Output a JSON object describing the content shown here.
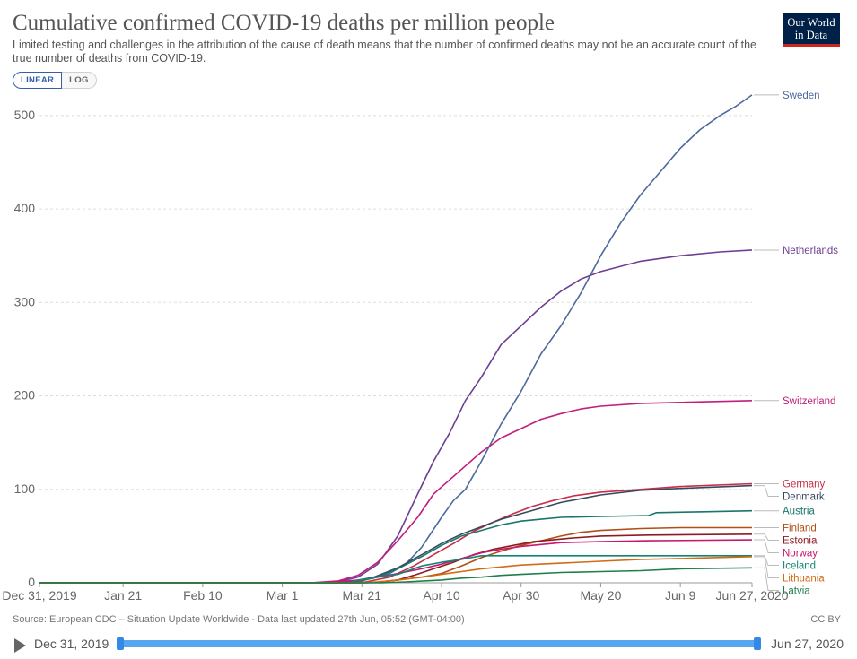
{
  "header": {
    "title": "Cumulative confirmed COVID-19 deaths per million people",
    "subtitle": "Limited testing and challenges in the attribution of the cause of death means that the number of confirmed deaths may not be an accurate count of the true number of deaths from COVID-19.",
    "logo": "Our World in Data",
    "scale_linear": "LINEAR",
    "scale_log": "LOG"
  },
  "footer": {
    "source": "Source: European CDC – Situation Update Worldwide - Data last updated 27th Jun, 05:52 (GMT-04:00)",
    "license": "CC BY"
  },
  "timeline": {
    "start": "Dec 31, 2019",
    "end": "Jun 27, 2020"
  },
  "chart_data": {
    "type": "line",
    "title": "Cumulative confirmed COVID-19 deaths per million people",
    "xlabel": "",
    "ylabel": "",
    "ylim": [
      0,
      520
    ],
    "yticks": [
      0,
      100,
      200,
      300,
      400,
      500
    ],
    "x_start": "2019-12-31",
    "x_end": "2020-06-27",
    "xticks": [
      {
        "date": "2019-12-31",
        "label": "Dec 31, 2019"
      },
      {
        "date": "2020-01-21",
        "label": "Jan 21"
      },
      {
        "date": "2020-02-10",
        "label": "Feb 10"
      },
      {
        "date": "2020-03-01",
        "label": "Mar 1"
      },
      {
        "date": "2020-03-21",
        "label": "Mar 21"
      },
      {
        "date": "2020-04-10",
        "label": "Apr 10"
      },
      {
        "date": "2020-04-30",
        "label": "Apr 30"
      },
      {
        "date": "2020-05-20",
        "label": "May 20"
      },
      {
        "date": "2020-06-09",
        "label": "Jun 9"
      },
      {
        "date": "2020-06-27",
        "label": "Jun 27, 2020"
      }
    ],
    "grid": true,
    "legend": "right",
    "series": [
      {
        "name": "Sweden",
        "color": "#4c6a9c",
        "points": [
          [
            "2019-12-31",
            0
          ],
          [
            "2020-03-15",
            0
          ],
          [
            "2020-03-21",
            2
          ],
          [
            "2020-03-28",
            10
          ],
          [
            "2020-04-01",
            20
          ],
          [
            "2020-04-05",
            38
          ],
          [
            "2020-04-10",
            70
          ],
          [
            "2020-04-13",
            88
          ],
          [
            "2020-04-16",
            100
          ],
          [
            "2020-04-20",
            130
          ],
          [
            "2020-04-25",
            170
          ],
          [
            "2020-04-30",
            205
          ],
          [
            "2020-05-05",
            245
          ],
          [
            "2020-05-10",
            275
          ],
          [
            "2020-05-15",
            310
          ],
          [
            "2020-05-20",
            350
          ],
          [
            "2020-05-25",
            385
          ],
          [
            "2020-05-30",
            415
          ],
          [
            "2020-06-04",
            440
          ],
          [
            "2020-06-09",
            465
          ],
          [
            "2020-06-14",
            485
          ],
          [
            "2020-06-19",
            500
          ],
          [
            "2020-06-23",
            510
          ],
          [
            "2020-06-27",
            522
          ]
        ]
      },
      {
        "name": "Netherlands",
        "color": "#6d3e91",
        "points": [
          [
            "2019-12-31",
            0
          ],
          [
            "2020-03-08",
            0
          ],
          [
            "2020-03-15",
            1
          ],
          [
            "2020-03-20",
            6
          ],
          [
            "2020-03-25",
            20
          ],
          [
            "2020-03-30",
            50
          ],
          [
            "2020-04-04",
            95
          ],
          [
            "2020-04-08",
            130
          ],
          [
            "2020-04-12",
            160
          ],
          [
            "2020-04-16",
            195
          ],
          [
            "2020-04-20",
            220
          ],
          [
            "2020-04-25",
            255
          ],
          [
            "2020-04-30",
            275
          ],
          [
            "2020-05-05",
            295
          ],
          [
            "2020-05-10",
            312
          ],
          [
            "2020-05-15",
            325
          ],
          [
            "2020-05-20",
            333
          ],
          [
            "2020-05-30",
            344
          ],
          [
            "2020-06-09",
            350
          ],
          [
            "2020-06-19",
            354
          ],
          [
            "2020-06-27",
            356
          ]
        ]
      },
      {
        "name": "Switzerland",
        "color": "#c11e7c",
        "points": [
          [
            "2019-12-31",
            0
          ],
          [
            "2020-03-08",
            0
          ],
          [
            "2020-03-15",
            2
          ],
          [
            "2020-03-20",
            8
          ],
          [
            "2020-03-25",
            22
          ],
          [
            "2020-03-30",
            45
          ],
          [
            "2020-04-04",
            70
          ],
          [
            "2020-04-08",
            95
          ],
          [
            "2020-04-12",
            110
          ],
          [
            "2020-04-16",
            125
          ],
          [
            "2020-04-20",
            140
          ],
          [
            "2020-04-25",
            155
          ],
          [
            "2020-04-30",
            165
          ],
          [
            "2020-05-05",
            175
          ],
          [
            "2020-05-10",
            181
          ],
          [
            "2020-05-15",
            186
          ],
          [
            "2020-05-20",
            189
          ],
          [
            "2020-05-30",
            192
          ],
          [
            "2020-06-09",
            193
          ],
          [
            "2020-06-27",
            195
          ]
        ]
      },
      {
        "name": "Germany",
        "color": "#c82e48",
        "points": [
          [
            "2019-12-31",
            0
          ],
          [
            "2020-03-15",
            0
          ],
          [
            "2020-03-22",
            1
          ],
          [
            "2020-03-28",
            6
          ],
          [
            "2020-04-03",
            18
          ],
          [
            "2020-04-08",
            30
          ],
          [
            "2020-04-13",
            42
          ],
          [
            "2020-04-18",
            55
          ],
          [
            "2020-04-23",
            65
          ],
          [
            "2020-04-28",
            74
          ],
          [
            "2020-05-03",
            82
          ],
          [
            "2020-05-08",
            88
          ],
          [
            "2020-05-13",
            93
          ],
          [
            "2020-05-20",
            97
          ],
          [
            "2020-05-30",
            100
          ],
          [
            "2020-06-09",
            103
          ],
          [
            "2020-06-27",
            106
          ]
        ]
      },
      {
        "name": "Denmark",
        "color": "#38495f",
        "points": [
          [
            "2019-12-31",
            0
          ],
          [
            "2020-03-12",
            0
          ],
          [
            "2020-03-18",
            1
          ],
          [
            "2020-03-24",
            6
          ],
          [
            "2020-03-30",
            16
          ],
          [
            "2020-04-05",
            30
          ],
          [
            "2020-04-10",
            42
          ],
          [
            "2020-04-15",
            52
          ],
          [
            "2020-04-20",
            60
          ],
          [
            "2020-04-25",
            68
          ],
          [
            "2020-04-30",
            74
          ],
          [
            "2020-05-05",
            80
          ],
          [
            "2020-05-10",
            86
          ],
          [
            "2020-05-15",
            90
          ],
          [
            "2020-05-20",
            94
          ],
          [
            "2020-05-30",
            99
          ],
          [
            "2020-06-09",
            101
          ],
          [
            "2020-06-27",
            104
          ]
        ]
      },
      {
        "name": "Austria",
        "color": "#18766b",
        "points": [
          [
            "2019-12-31",
            0
          ],
          [
            "2020-03-12",
            0
          ],
          [
            "2020-03-18",
            1
          ],
          [
            "2020-03-24",
            5
          ],
          [
            "2020-03-30",
            15
          ],
          [
            "2020-04-05",
            28
          ],
          [
            "2020-04-10",
            40
          ],
          [
            "2020-04-15",
            50
          ],
          [
            "2020-04-20",
            56
          ],
          [
            "2020-04-25",
            62
          ],
          [
            "2020-04-30",
            66
          ],
          [
            "2020-05-05",
            68
          ],
          [
            "2020-05-10",
            70
          ],
          [
            "2020-05-20",
            71
          ],
          [
            "2020-06-01",
            72
          ],
          [
            "2020-06-03",
            75
          ],
          [
            "2020-06-15",
            76
          ],
          [
            "2020-06-27",
            77
          ]
        ]
      },
      {
        "name": "Finland",
        "color": "#b24d16",
        "points": [
          [
            "2019-12-31",
            0
          ],
          [
            "2020-03-20",
            0
          ],
          [
            "2020-03-25",
            1
          ],
          [
            "2020-03-30",
            3
          ],
          [
            "2020-04-05",
            6
          ],
          [
            "2020-04-10",
            10
          ],
          [
            "2020-04-15",
            18
          ],
          [
            "2020-04-20",
            27
          ],
          [
            "2020-04-25",
            34
          ],
          [
            "2020-04-30",
            40
          ],
          [
            "2020-05-05",
            45
          ],
          [
            "2020-05-10",
            50
          ],
          [
            "2020-05-15",
            54
          ],
          [
            "2020-05-20",
            56
          ],
          [
            "2020-05-30",
            58
          ],
          [
            "2020-06-09",
            59
          ],
          [
            "2020-06-27",
            59
          ]
        ]
      },
      {
        "name": "Estonia",
        "color": "#8c1b22",
        "points": [
          [
            "2019-12-31",
            0
          ],
          [
            "2020-03-22",
            0
          ],
          [
            "2020-03-26",
            1
          ],
          [
            "2020-03-30",
            3
          ],
          [
            "2020-04-03",
            8
          ],
          [
            "2020-04-08",
            15
          ],
          [
            "2020-04-13",
            22
          ],
          [
            "2020-04-18",
            30
          ],
          [
            "2020-04-23",
            36
          ],
          [
            "2020-04-28",
            40
          ],
          [
            "2020-05-03",
            44
          ],
          [
            "2020-05-08",
            46
          ],
          [
            "2020-05-13",
            48
          ],
          [
            "2020-05-20",
            50
          ],
          [
            "2020-06-01",
            51
          ],
          [
            "2020-06-27",
            52
          ]
        ]
      },
      {
        "name": "Norway",
        "color": "#c7176f",
        "points": [
          [
            "2019-12-31",
            0
          ],
          [
            "2020-03-10",
            0
          ],
          [
            "2020-03-15",
            1
          ],
          [
            "2020-03-20",
            3
          ],
          [
            "2020-03-25",
            6
          ],
          [
            "2020-03-30",
            10
          ],
          [
            "2020-04-05",
            15
          ],
          [
            "2020-04-10",
            20
          ],
          [
            "2020-04-15",
            26
          ],
          [
            "2020-04-20",
            32
          ],
          [
            "2020-04-25",
            36
          ],
          [
            "2020-04-30",
            39
          ],
          [
            "2020-05-05",
            41
          ],
          [
            "2020-05-10",
            43
          ],
          [
            "2020-05-20",
            44
          ],
          [
            "2020-06-01",
            45
          ],
          [
            "2020-06-27",
            46
          ]
        ]
      },
      {
        "name": "Iceland",
        "color": "#128574",
        "points": [
          [
            "2019-12-31",
            0
          ],
          [
            "2020-03-18",
            0
          ],
          [
            "2020-03-20",
            3
          ],
          [
            "2020-03-25",
            6
          ],
          [
            "2020-03-30",
            9
          ],
          [
            "2020-04-05",
            18
          ],
          [
            "2020-04-10",
            22
          ],
          [
            "2020-04-15",
            25
          ],
          [
            "2020-04-20",
            29
          ],
          [
            "2020-04-30",
            29
          ],
          [
            "2020-06-27",
            29
          ]
        ]
      },
      {
        "name": "Lithuania",
        "color": "#d26b14",
        "points": [
          [
            "2019-12-31",
            0
          ],
          [
            "2020-03-20",
            0
          ],
          [
            "2020-03-25",
            1
          ],
          [
            "2020-03-30",
            3
          ],
          [
            "2020-04-05",
            6
          ],
          [
            "2020-04-10",
            9
          ],
          [
            "2020-04-15",
            12
          ],
          [
            "2020-04-20",
            15
          ],
          [
            "2020-04-25",
            17
          ],
          [
            "2020-04-30",
            19
          ],
          [
            "2020-05-10",
            21
          ],
          [
            "2020-05-20",
            23
          ],
          [
            "2020-05-30",
            25
          ],
          [
            "2020-06-09",
            26
          ],
          [
            "2020-06-27",
            28
          ]
        ]
      },
      {
        "name": "Latvia",
        "color": "#1f7e4b",
        "points": [
          [
            "2019-12-31",
            0
          ],
          [
            "2020-03-26",
            0
          ],
          [
            "2020-04-01",
            1
          ],
          [
            "2020-04-10",
            3
          ],
          [
            "2020-04-15",
            5
          ],
          [
            "2020-04-20",
            6
          ],
          [
            "2020-04-25",
            8
          ],
          [
            "2020-04-30",
            9
          ],
          [
            "2020-05-10",
            11
          ],
          [
            "2020-05-20",
            12
          ],
          [
            "2020-05-30",
            13
          ],
          [
            "2020-06-09",
            15
          ],
          [
            "2020-06-27",
            16
          ]
        ]
      }
    ]
  }
}
